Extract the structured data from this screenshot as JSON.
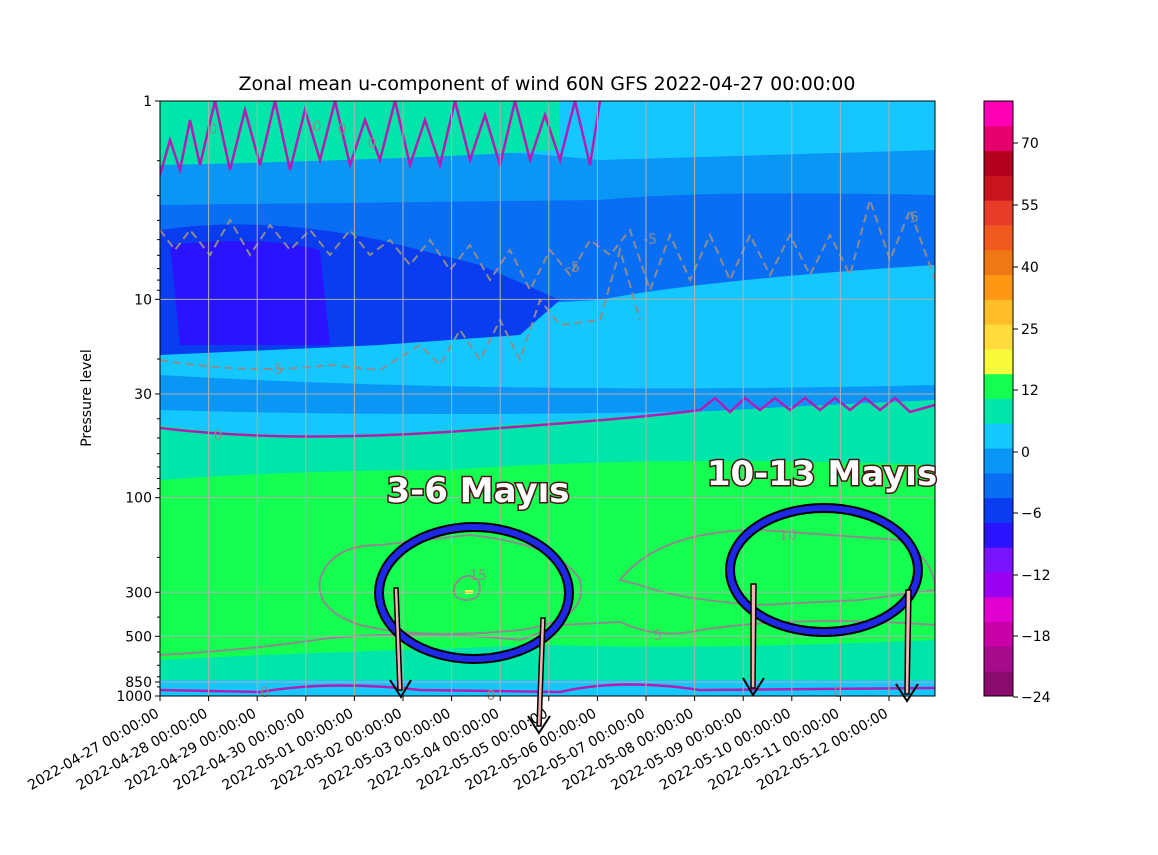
{
  "chart_data": {
    "type": "heatmap",
    "title": "Zonal mean u-component of wind 60N GFS 2022-04-27 00:00:00",
    "xlabel": "",
    "ylabel": "Pressure level",
    "y_scale": "log",
    "y_inverted": true,
    "ylim": [
      1000,
      1
    ],
    "y_ticks": [
      "1",
      "10",
      "30",
      "100",
      "300",
      "500",
      "850",
      "1000"
    ],
    "x_ticks": [
      "2022-04-27 00:00:00",
      "2022-04-28 00:00:00",
      "2022-04-29 00:00:00",
      "2022-04-30 00:00:00",
      "2022-05-01 00:00:00",
      "2022-05-02 00:00:00",
      "2022-05-03 00:00:00",
      "2022-05-04 00:00:00",
      "2022-05-05 00:00:00",
      "2022-05-06 00:00:00",
      "2022-05-07 00:00:00",
      "2022-05-08 00:00:00",
      "2022-05-09 00:00:00",
      "2022-05-10 00:00:00",
      "2022-05-11 00:00:00",
      "2022-05-12 00:00:00"
    ],
    "grid": true,
    "colorbar": {
      "ticks": [
        "70",
        "55",
        "40",
        "25",
        "12",
        "0",
        "−6",
        "−12",
        "−18",
        "−24"
      ],
      "levels": [
        -24,
        -21,
        -18,
        -15,
        -12,
        -9,
        -6,
        -3,
        0,
        6,
        12,
        18,
        22,
        25,
        30,
        35,
        40,
        45,
        50,
        55,
        60,
        65,
        70,
        75,
        80
      ],
      "colors": [
        "#8b0a6e",
        "#a50b8a",
        "#c800a8",
        "#e000d0",
        "#9b00f0",
        "#7a14ff",
        "#2a14ff",
        "#0a3cf0",
        "#0a6ef5",
        "#0a96f5",
        "#14c8ff",
        "#00e6aa",
        "#14ff50",
        "#fafa3c",
        "#ffdc3c",
        "#ffbe28",
        "#ff9614",
        "#f07814",
        "#f05a1e",
        "#e63c28",
        "#c8141e",
        "#b4001e",
        "#e6006e",
        "#ff00b4"
      ]
    },
    "contour_labels": [
      "0",
      "0",
      "0",
      "0",
      "0",
      "0",
      "0",
      "0",
      "-5",
      "-5",
      "-5",
      "-5",
      "5",
      "10",
      "15"
    ],
    "annotations": [
      {
        "text": "3-6 Mayıs",
        "x_range": [
          "2022-05-02 00:00:00",
          "2022-05-05 00:00:00"
        ],
        "y": 300,
        "arrows_to": [
          "2022-05-02 00:00:00",
          "2022-05-05 00:00:00"
        ]
      },
      {
        "text": "10-13 Mayıs",
        "x_range": [
          "2022-05-09 00:00:00",
          "2022-05-12 00:00:00"
        ],
        "y": 250,
        "arrows_to": [
          "2022-05-09 00:00:00",
          "2022-05-12 00:00:00"
        ]
      }
    ]
  }
}
